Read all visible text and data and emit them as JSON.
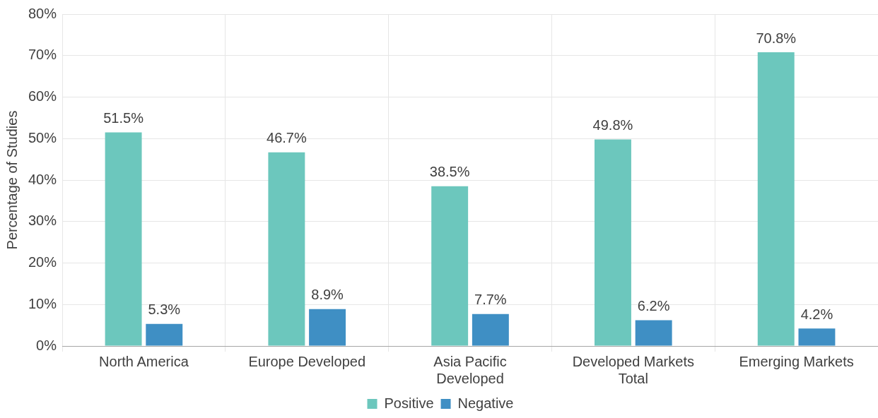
{
  "chart_data": {
    "type": "bar",
    "ylabel": "Percentage of Studies",
    "categories": [
      "North America",
      "Europe Developed",
      "Asia Pacific\nDeveloped",
      "Developed Markets\nTotal",
      "Emerging Markets"
    ],
    "series": [
      {
        "name": "Positive",
        "color": "#6cc7bd",
        "values": [
          51.5,
          46.7,
          38.5,
          49.8,
          70.8
        ],
        "value_labels": [
          "51.5%",
          "46.7%",
          "38.5%",
          "49.8%",
          "70.8%"
        ]
      },
      {
        "name": "Negative",
        "color": "#3f8fc4",
        "values": [
          5.3,
          8.9,
          7.7,
          6.2,
          4.2
        ],
        "value_labels": [
          "5.3%",
          "8.9%",
          "7.7%",
          "6.2%",
          "4.2%"
        ]
      }
    ],
    "ylim": [
      0,
      80
    ],
    "yticks": [
      {
        "value": 0,
        "label": "0%"
      },
      {
        "value": 10,
        "label": "10%"
      },
      {
        "value": 20,
        "label": "20%"
      },
      {
        "value": 30,
        "label": "30%"
      },
      {
        "value": 40,
        "label": "40%"
      },
      {
        "value": 50,
        "label": "50%"
      },
      {
        "value": 60,
        "label": "60%"
      },
      {
        "value": 70,
        "label": "70%"
      },
      {
        "value": 80,
        "label": "80%"
      }
    ],
    "grid": true,
    "legend": "bottom"
  }
}
